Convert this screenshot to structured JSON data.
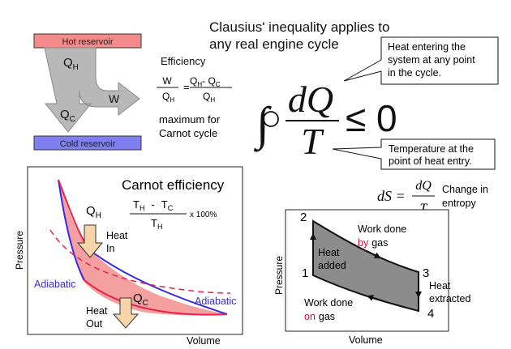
{
  "header": {
    "line1": "Clausius' inequality applies to",
    "line2": "any real engine cycle"
  },
  "engine_box": {
    "hot_label": "Hot reservoir",
    "cold_label": "Cold reservoir",
    "qh_label": "Q",
    "qh_sub": "H",
    "qc_label": "Q",
    "qc_sub": "C",
    "w_label": "W",
    "colors": {
      "hot": "#f48a8a",
      "cold": "#7f7ff0",
      "arrow": "#b8b8b8"
    }
  },
  "efficiency": {
    "title": "Efficiency",
    "num_left": "W",
    "den_left": "Q",
    "den_left_sub": "H",
    "equals": "=",
    "num_right_a": "Q",
    "num_right_a_sub": "H",
    "num_right_minus": "- Q",
    "num_right_b_sub": "C",
    "den_right": "Q",
    "den_right_sub": "H",
    "note_line1": "maximum for",
    "note_line2": "Carnot cycle"
  },
  "integral": {
    "integrand_num": "dQ",
    "integrand_den": "T",
    "relation": "≤ 0",
    "callout_top": [
      "Heat entering the",
      "system at any point",
      "in the cycle."
    ],
    "callout_bottom": [
      "Temperature at the",
      "point of heat entry."
    ]
  },
  "entropy": {
    "lhs": "dS =",
    "num": "dQ",
    "den": "T",
    "note_line1": "Change in",
    "note_line2": "entropy"
  },
  "carnot_plot": {
    "title": "Carnot efficiency",
    "formula_th": "T",
    "formula_th_sub": "H",
    "formula_minus": "-",
    "formula_tc": "T",
    "formula_tc_sub": "C",
    "formula_den": "T",
    "formula_den_sub": "H",
    "formula_times": "x 100%",
    "qh_label": "Q",
    "qh_sub": "H",
    "qc_label": "Q",
    "qc_sub": "C",
    "heat_in": [
      "Heat",
      "In"
    ],
    "heat_out": [
      "Heat",
      "Out"
    ],
    "adiabatic_left": "Adiabatic",
    "adiabatic_right": "Adiabatic",
    "ylabel": "Pressure",
    "xlabel": "Volume",
    "colors": {
      "fill": "#f4a0a0",
      "isotherm": "#e8204a",
      "adiabat": "#3a2be0",
      "arrow_fill": "#f9d4a8"
    }
  },
  "pv_plot": {
    "ylabel": "Pressure",
    "xlabel": "Volume",
    "points": [
      "1",
      "2",
      "3",
      "4"
    ],
    "heat_added": [
      "Heat",
      "added"
    ],
    "work_by": [
      "Work done",
      "by",
      "gas"
    ],
    "work_on": [
      "Work done",
      "on",
      "gas"
    ],
    "heat_extracted": [
      "Heat",
      "extracted"
    ],
    "colors": {
      "fill": "#8c8c8c",
      "accent": "#e0103a"
    }
  }
}
